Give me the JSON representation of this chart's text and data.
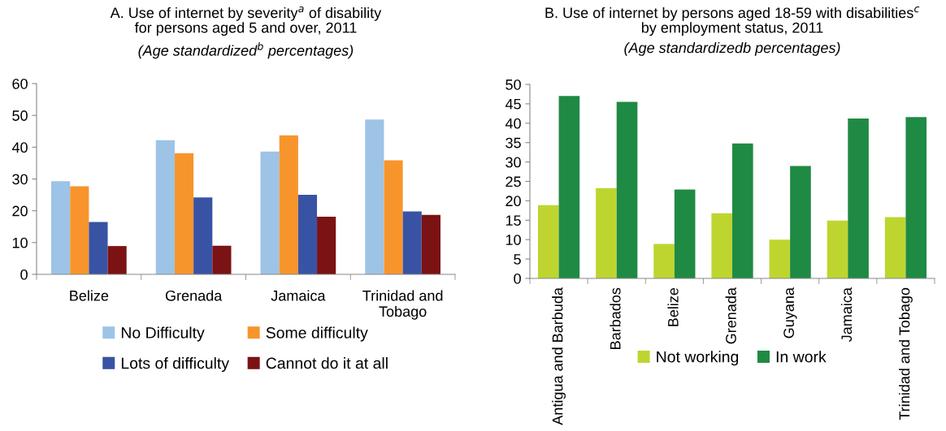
{
  "chart_data": [
    {
      "type": "bar",
      "title": "A. Use of internet by severity$^{a}$ of disability\nfor persons aged 5 and over, 2011",
      "subtitle": "(Age standardized$^{b}$ percentages)",
      "categories": [
        "Belize",
        "Grenada",
        "Jamaica",
        "Trinidad and\nTobago"
      ],
      "series": [
        {
          "name": "No Difficulty",
          "color": "#9dc3e6",
          "values": [
            29.3,
            42.2,
            38.6,
            48.7
          ]
        },
        {
          "name": "Some difficulty",
          "color": "#f7952c",
          "values": [
            27.7,
            38.1,
            43.7,
            35.9
          ]
        },
        {
          "name": "Lots of difficulty",
          "color": "#3953a4",
          "values": [
            16.5,
            24.2,
            25.0,
            19.8
          ]
        },
        {
          "name": "Cannot do it at all",
          "color": "#7b1214",
          "values": [
            8.9,
            9.0,
            18.1,
            18.7
          ]
        }
      ],
      "ylim": [
        0,
        60
      ],
      "yticks": [
        0,
        10,
        20,
        30,
        40,
        50,
        60
      ],
      "grid": false,
      "legend": "bottom"
    },
    {
      "type": "bar",
      "title": "B. Use of internet by persons aged 18-59 with disabilities$^{c}$\nby employment status, 2011",
      "subtitle": "(Age standardizedb percentages)",
      "categories": [
        "Antigua and Barbuda",
        "Barbados",
        "Belize",
        "Grenada",
        "Guyana",
        "Jamaica",
        "Trinidad and Tobago"
      ],
      "series": [
        {
          "name": "Not working",
          "color": "#bed530",
          "values": [
            18.9,
            23.3,
            8.9,
            16.8,
            10.0,
            14.9,
            15.8
          ]
        },
        {
          "name": "In work",
          "color": "#1f8a43",
          "values": [
            47.0,
            45.5,
            22.9,
            34.8,
            29.0,
            41.2,
            41.6
          ]
        }
      ],
      "ylim": [
        0,
        50
      ],
      "yticks": [
        0,
        5,
        10,
        15,
        20,
        25,
        30,
        35,
        40,
        45,
        50
      ],
      "grid": false,
      "legend": "bottom"
    }
  ]
}
